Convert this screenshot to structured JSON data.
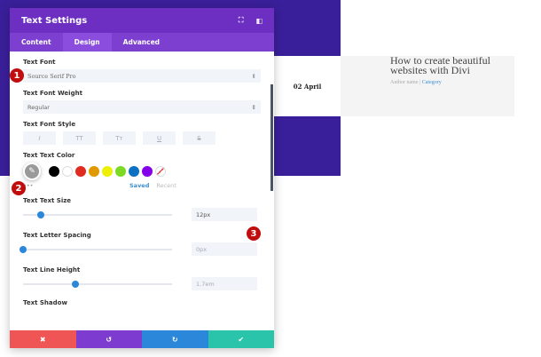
{
  "modal": {
    "title": "Text Settings",
    "icons": [
      "fullscreen-icon",
      "sidebar-toggle-icon"
    ],
    "tabs": [
      {
        "label": "Content"
      },
      {
        "label": "Design"
      },
      {
        "label": "Advanced"
      }
    ],
    "fields": {
      "font_label": "Text Font",
      "font_value": "Source Serif Pro",
      "weight_label": "Text Font Weight",
      "weight_value": "Regular",
      "style_label": "Text Font Style",
      "styles": [
        "I",
        "TT",
        "Tт",
        "U",
        "S"
      ],
      "color_label": "Text Text Color",
      "swatches": [
        "#000000",
        "#ffffff",
        "#e02b20",
        "#e09900",
        "#edf000",
        "#7cda24",
        "#0c71c3",
        "#8300e9"
      ],
      "dots": "•••",
      "saved": "Saved",
      "recent": "Recent",
      "size_label": "Text Text Size",
      "size_value": "12px",
      "size_pct": 12,
      "spacing_label": "Text Letter Spacing",
      "spacing_value": "0px",
      "spacing_pct": 0,
      "line_label": "Text Line Height",
      "line_value": "1.7em",
      "line_pct": 35,
      "shadow_label": "Text Shadow"
    },
    "footer": {
      "cancel": "✖",
      "undo": "↺",
      "redo": "↻",
      "save": "✔"
    }
  },
  "preview": {
    "date": "02 April",
    "title": "How to create beautiful websites with Divi",
    "author": "Author name",
    "sep": " | ",
    "category": "Category"
  },
  "badges": [
    "1",
    "2",
    "3"
  ]
}
